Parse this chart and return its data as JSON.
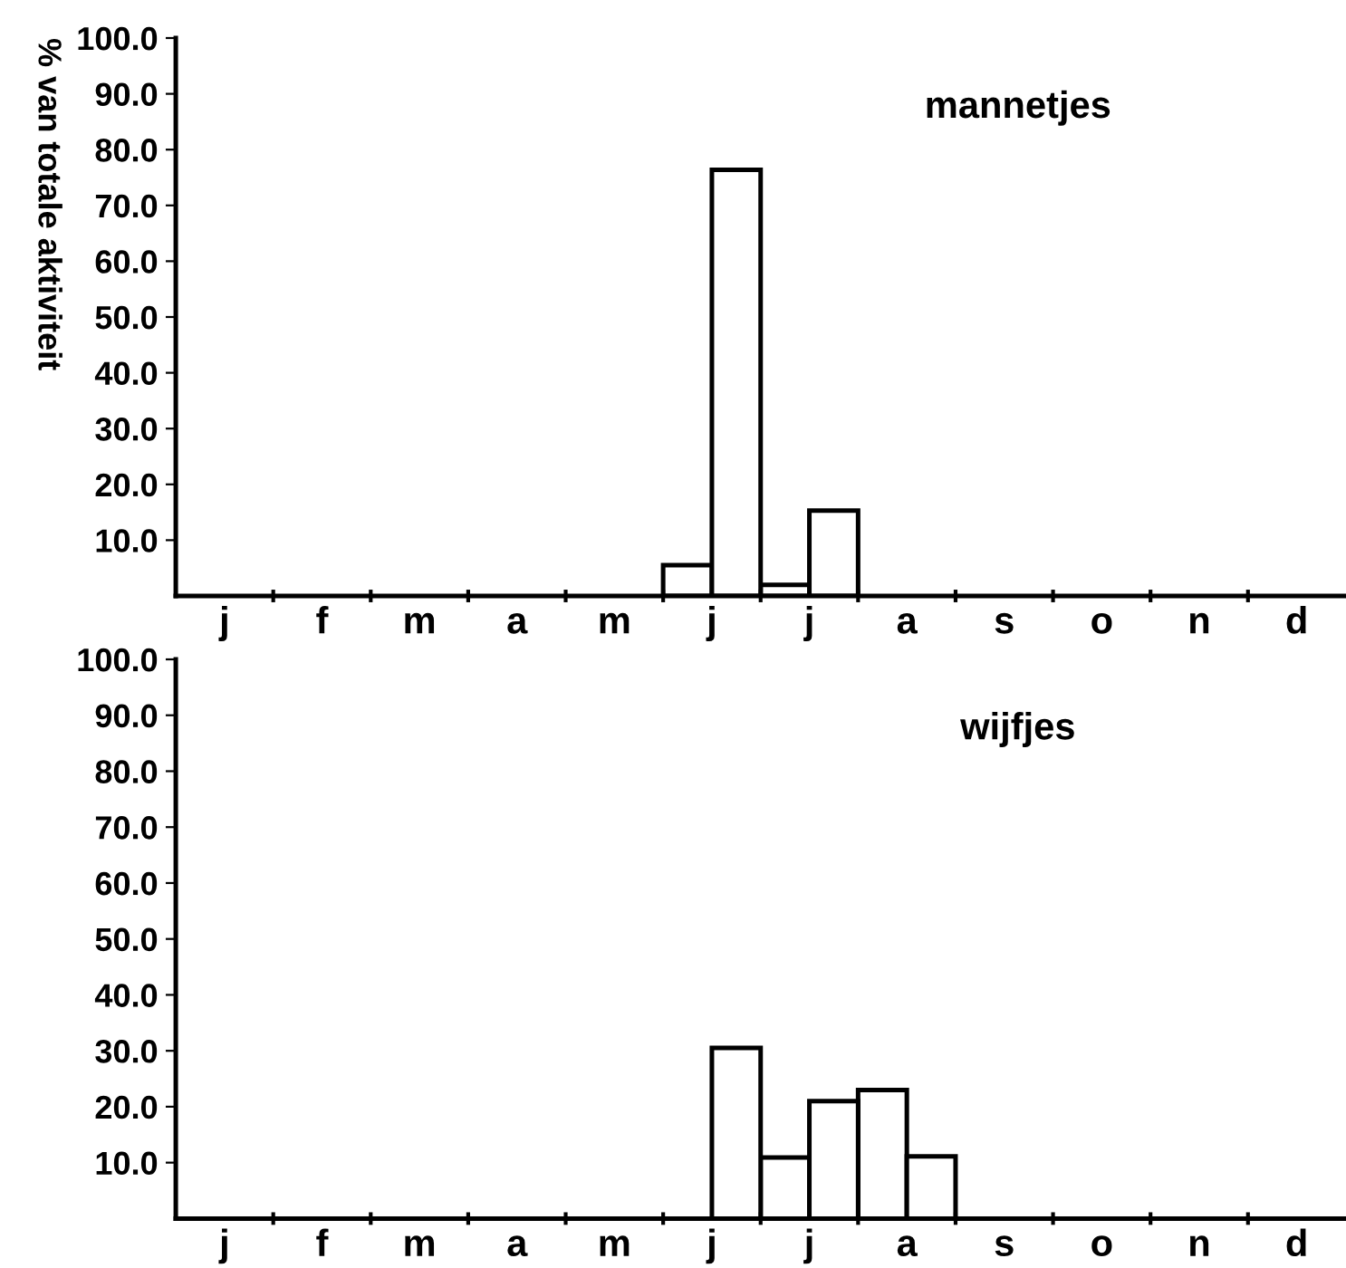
{
  "chart_data": [
    {
      "type": "bar",
      "title": "mannetjes",
      "ylabel": "% van totale aktiviteit",
      "categories": [
        "j",
        "f",
        "m",
        "a",
        "m",
        "j",
        "j",
        "a",
        "s",
        "o",
        "n",
        "d"
      ],
      "series": [
        {
          "color": "#ffffff",
          "values": [
            null,
            null,
            null,
            null,
            null,
            5.5,
            2.0,
            null,
            null,
            null,
            null,
            null
          ]
        },
        {
          "color": "#ffffff",
          "values": [
            null,
            null,
            null,
            null,
            null,
            76.4,
            15.3,
            null,
            null,
            null,
            null,
            null
          ]
        }
      ],
      "ylim": [
        0,
        100
      ],
      "yticks": [
        {
          "value": 10,
          "label": "10.0"
        },
        {
          "value": 20,
          "label": "20.0"
        },
        {
          "value": 30,
          "label": "30.0"
        },
        {
          "value": 40,
          "label": "40.0"
        },
        {
          "value": 50,
          "label": "50.0"
        },
        {
          "value": 60,
          "label": "60.0"
        },
        {
          "value": 70,
          "label": "70.0"
        },
        {
          "value": 80,
          "label": "80.0"
        },
        {
          "value": 90,
          "label": "90.0"
        },
        {
          "value": 100,
          "label": "100.0"
        }
      ],
      "grid": false,
      "legend": false
    },
    {
      "type": "bar",
      "title": "wijfjes",
      "categories": [
        "j",
        "f",
        "m",
        "a",
        "m",
        "j",
        "j",
        "a",
        "s",
        "o",
        "n",
        "d"
      ],
      "series": [
        {
          "color": "#ffffff",
          "values": [
            null,
            null,
            null,
            null,
            null,
            null,
            10.9,
            23.0,
            null,
            null,
            null,
            null
          ]
        },
        {
          "color": "#ffffff",
          "values": [
            null,
            null,
            null,
            null,
            null,
            30.5,
            21.0,
            11.1,
            null,
            null,
            null,
            null
          ]
        }
      ],
      "ylim": [
        0,
        100
      ],
      "yticks": [
        {
          "value": 10,
          "label": "10.0"
        },
        {
          "value": 20,
          "label": "20.0"
        },
        {
          "value": 30,
          "label": "30.0"
        },
        {
          "value": 40,
          "label": "40.0"
        },
        {
          "value": 50,
          "label": "50.0"
        },
        {
          "value": 60,
          "label": "60.0"
        },
        {
          "value": 70,
          "label": "70.0"
        },
        {
          "value": 80,
          "label": "80.0"
        },
        {
          "value": 90,
          "label": "90.0"
        },
        {
          "value": 100,
          "label": "100.0"
        }
      ],
      "grid": false,
      "legend": false
    }
  ]
}
